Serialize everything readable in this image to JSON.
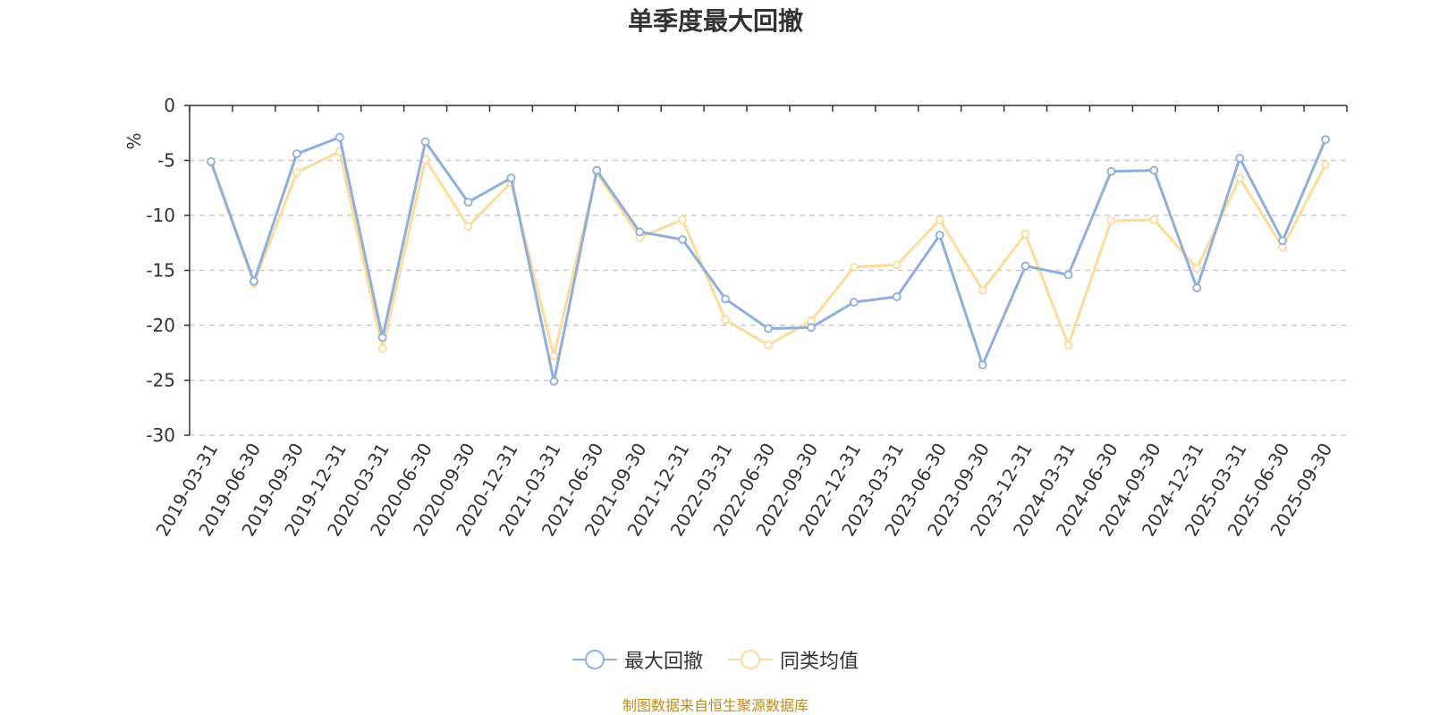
{
  "chart_data": {
    "type": "line",
    "title": "单季度最大回撤",
    "ylabel": "%",
    "xlabel": "",
    "ylim": [
      -30,
      0
    ],
    "yticks": [
      0,
      -5,
      -10,
      -15,
      -20,
      -25,
      -30
    ],
    "grid": true,
    "legend_position": "bottom-center",
    "categories": [
      "2019-03-31",
      "2019-06-30",
      "2019-09-30",
      "2019-12-31",
      "2020-03-31",
      "2020-06-30",
      "2020-09-30",
      "2020-12-31",
      "2021-03-31",
      "2021-06-30",
      "2021-09-30",
      "2021-12-31",
      "2022-03-31",
      "2022-06-30",
      "2022-09-30",
      "2022-12-31",
      "2023-03-31",
      "2023-06-30",
      "2023-09-30",
      "2023-12-31",
      "2024-03-31",
      "2024-06-30",
      "2024-09-30",
      "2024-12-31",
      "2025-03-31",
      "2025-06-30",
      "2025-09-30"
    ],
    "series": [
      {
        "name": "最大回撤",
        "color": "#8eaedb",
        "values": [
          -5.1,
          -16.0,
          -4.4,
          -2.9,
          -21.1,
          -3.3,
          -8.8,
          -6.6,
          -25.1,
          -5.9,
          -11.5,
          -12.2,
          -17.6,
          -20.3,
          -20.2,
          -17.9,
          -17.4,
          -11.8,
          -23.6,
          -14.6,
          -15.4,
          -6.0,
          -5.9,
          -16.6,
          -4.8,
          -12.3,
          -3.1
        ]
      },
      {
        "name": "同类均值",
        "color": "#fcdb9b",
        "values": [
          -5.2,
          -16.2,
          -6.1,
          -4.2,
          -22.1,
          -4.9,
          -11.0,
          -7.0,
          -22.8,
          -6.1,
          -12.0,
          -10.4,
          -19.5,
          -21.8,
          -19.6,
          -14.7,
          -14.5,
          -10.4,
          -16.8,
          -11.7,
          -21.8,
          -10.5,
          -10.4,
          -14.8,
          -6.6,
          -12.9,
          -5.4
        ]
      }
    ]
  },
  "footer": {
    "source": "制图数据来自恒生聚源数据库"
  }
}
